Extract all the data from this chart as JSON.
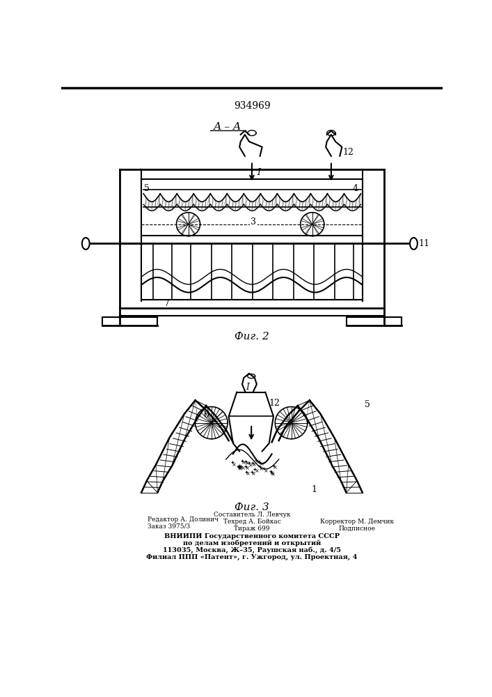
{
  "patent_number": "934969",
  "fig2_label": "Фиг. 2",
  "fig3_label": "Фиг. 3",
  "section_label": "А – А",
  "background_color": "#ffffff",
  "line_color": "#000000",
  "footer_col1_line1": "Редактор А. Долинич",
  "footer_col1_line2": "Заказ 3975/3",
  "footer_col2_line1": "Составитель Л. Левчук",
  "footer_col2_line2": "Техред А. Бойкас",
  "footer_col2_line3": "Тираж 699",
  "footer_col3_line1": "Корректор М. Демчик",
  "footer_col3_line2": "Подписное",
  "footer_center1": "ВНИИПИ Государственного комитета СССР",
  "footer_center2": "по делам изобретений и открытий",
  "footer_center3": "113035, Москва, Ж–35, Раушская наб., д. 4/5",
  "footer_center4": "Филиал ППП «Патент», г. Ужгород, ул. Проектная, 4"
}
